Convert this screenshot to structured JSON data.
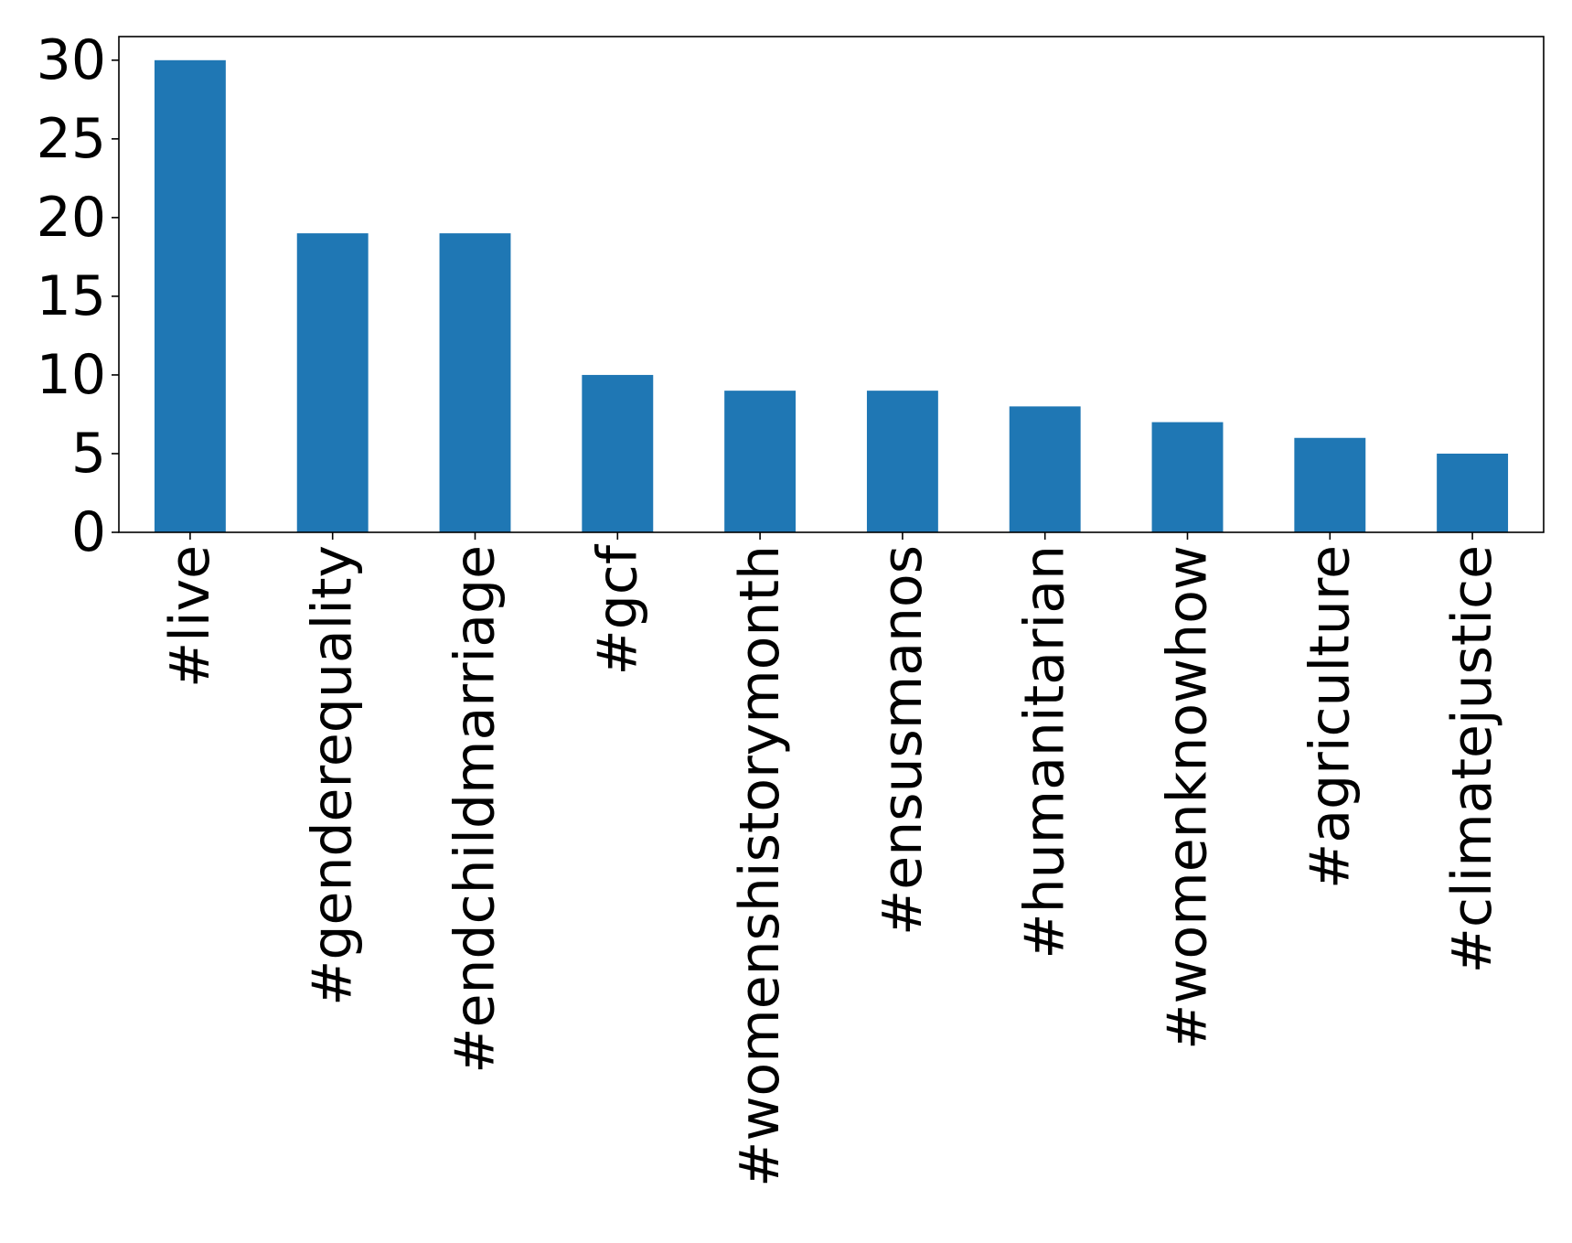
{
  "chart_data": {
    "type": "bar",
    "title": "",
    "xlabel": "",
    "ylabel": "",
    "categories": [
      "#live",
      "#genderequality",
      "#endchildmarriage",
      "#gcf",
      "#womenshistorymonth",
      "#ensusmanos",
      "#humanitarian",
      "#womenknowhow",
      "#agriculture",
      "#climatejustice"
    ],
    "values": [
      30,
      19,
      19,
      10,
      9,
      9,
      8,
      7,
      6,
      5
    ],
    "ylim": [
      0,
      31.5
    ],
    "yticks": [
      0,
      5,
      10,
      15,
      20,
      25,
      30
    ],
    "bar_color": "#1f77b4",
    "grid": false,
    "legend": "none"
  }
}
